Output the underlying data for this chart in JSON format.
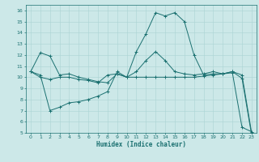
{
  "xlabel": "Humidex (Indice chaleur)",
  "xlim": [
    -0.5,
    23.5
  ],
  "ylim": [
    5,
    16.5
  ],
  "yticks": [
    5,
    6,
    7,
    8,
    9,
    10,
    11,
    12,
    13,
    14,
    15,
    16
  ],
  "xticks": [
    0,
    1,
    2,
    3,
    4,
    5,
    6,
    7,
    8,
    9,
    10,
    11,
    12,
    13,
    14,
    15,
    16,
    17,
    18,
    19,
    20,
    21,
    22,
    23
  ],
  "bg_color": "#cce8e8",
  "line_color": "#1a7070",
  "grid_color": "#aad4d4",
  "line1": [
    10.5,
    12.2,
    11.9,
    10.2,
    10.3,
    10.0,
    9.8,
    9.6,
    9.5,
    10.3,
    10.0,
    12.3,
    13.9,
    15.8,
    15.5,
    15.8,
    15.0,
    12.0,
    10.2,
    10.3,
    10.3,
    10.5,
    9.9,
    4.8
  ],
  "line2": [
    10.5,
    10.2,
    7.0,
    7.3,
    7.7,
    7.8,
    8.0,
    8.3,
    8.7,
    10.5,
    10.0,
    10.0,
    10.0,
    10.0,
    10.0,
    10.0,
    10.0,
    10.0,
    10.1,
    10.2,
    10.3,
    10.4,
    5.5,
    5.1
  ],
  "line3": [
    10.5,
    10.0,
    9.8,
    10.0,
    10.0,
    9.8,
    9.7,
    9.5,
    10.2,
    10.3,
    10.0,
    10.5,
    11.5,
    12.3,
    11.5,
    10.5,
    10.3,
    10.2,
    10.3,
    10.5,
    10.3,
    10.5,
    10.2,
    5.0
  ]
}
